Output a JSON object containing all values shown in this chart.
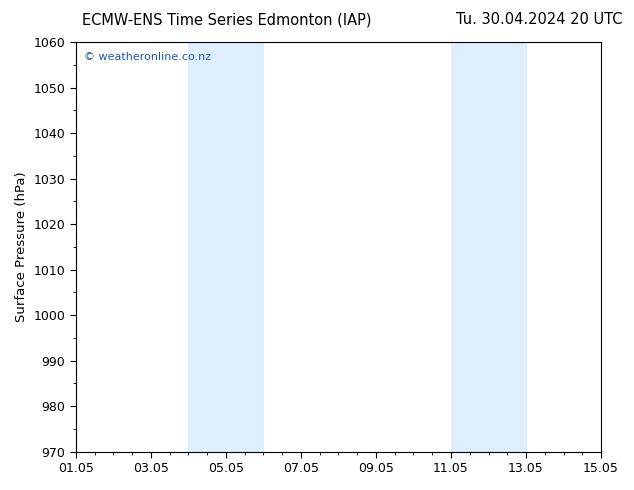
{
  "title_left": "ECMW-ENS Time Series Edmonton (IAP)",
  "title_right": "Tu. 30.04.2024 20 UTC",
  "ylabel": "Surface Pressure (hPa)",
  "ylim": [
    970,
    1060
  ],
  "yticks": [
    970,
    980,
    990,
    1000,
    1010,
    1020,
    1030,
    1040,
    1050,
    1060
  ],
  "xlim_start": 0,
  "xlim_end": 14,
  "xtick_positions": [
    0,
    2,
    4,
    6,
    8,
    10,
    12,
    14
  ],
  "xtick_labels": [
    "01.05",
    "03.05",
    "05.05",
    "07.05",
    "09.05",
    "11.05",
    "13.05",
    "15.05"
  ],
  "shaded_regions": [
    {
      "xmin": 3.0,
      "xmax": 5.0
    },
    {
      "xmin": 10.0,
      "xmax": 12.0
    }
  ],
  "shade_color": "#ddeeff",
  "watermark_text": "© weatheronline.co.nz",
  "watermark_color": "#2255aa",
  "background_color": "#ffffff",
  "plot_bg_color": "#ffffff",
  "title_fontsize": 10.5,
  "label_fontsize": 9.5,
  "tick_fontsize": 9,
  "minor_tick_interval": 0.5
}
